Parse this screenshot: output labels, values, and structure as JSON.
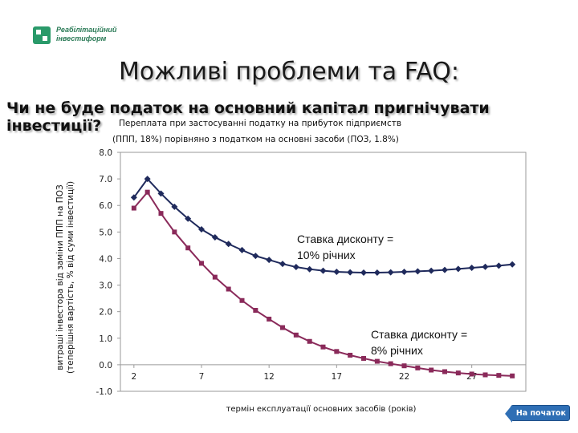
{
  "logo": {
    "line1": "Реабілітаційний",
    "line2": "інвестиформ",
    "mark_color": "#2a9a6a"
  },
  "slide": {
    "title": "Можливі проблеми та FAQ:"
  },
  "question": "Чи не буде податок на основний капітал пригнічувати інвестиції?",
  "home_button": {
    "label": "На початок"
  },
  "chart_data": {
    "type": "line",
    "title_line1": "Переплата при застосуванні податку на прибуток підприємств",
    "title_line2": "(ППП, 18%) порівняно з податком на основні засоби (ПОЗ, 1.8%)",
    "xlabel": "термін експлуатації основних засобів (років)",
    "ylabel": "витраші інвестора від заміни ППП на ПОЗ (теперішня вартість, % від суми інвестиції)",
    "ylim": [
      -1.0,
      8.0
    ],
    "xlim": [
      1,
      31
    ],
    "y_ticks": [
      "8.0",
      "7.0",
      "6.0",
      "5.0",
      "4.0",
      "3.0",
      "2.0",
      "1.0",
      "0.0",
      "-1.0"
    ],
    "x_ticks": [
      "2",
      "7",
      "12",
      "17",
      "22",
      "27"
    ],
    "grid": false,
    "x": [
      2,
      3,
      4,
      5,
      6,
      7,
      8,
      9,
      10,
      11,
      12,
      13,
      14,
      15,
      16,
      17,
      18,
      19,
      20,
      21,
      22,
      23,
      24,
      25,
      26,
      27,
      28,
      29,
      30
    ],
    "series": [
      {
        "annotation": [
          "Ставка дисконту =",
          "10% річних"
        ],
        "color": "#1f2a5c",
        "marker": "diamond",
        "values": [
          6.3,
          7.0,
          6.45,
          5.95,
          5.5,
          5.1,
          4.8,
          4.55,
          4.32,
          4.1,
          3.95,
          3.8,
          3.68,
          3.6,
          3.54,
          3.5,
          3.48,
          3.47,
          3.47,
          3.48,
          3.5,
          3.52,
          3.54,
          3.57,
          3.61,
          3.65,
          3.69,
          3.73,
          3.78
        ]
      },
      {
        "annotation": [
          "Ставка дисконту =",
          "8% річних"
        ],
        "color": "#8a2a5a",
        "marker": "square",
        "values": [
          5.9,
          6.5,
          5.7,
          5.0,
          4.4,
          3.82,
          3.3,
          2.85,
          2.42,
          2.05,
          1.72,
          1.4,
          1.12,
          0.88,
          0.67,
          0.5,
          0.36,
          0.24,
          0.13,
          0.04,
          -0.04,
          -0.12,
          -0.2,
          -0.26,
          -0.31,
          -0.35,
          -0.38,
          -0.4,
          -0.42
        ]
      }
    ]
  }
}
